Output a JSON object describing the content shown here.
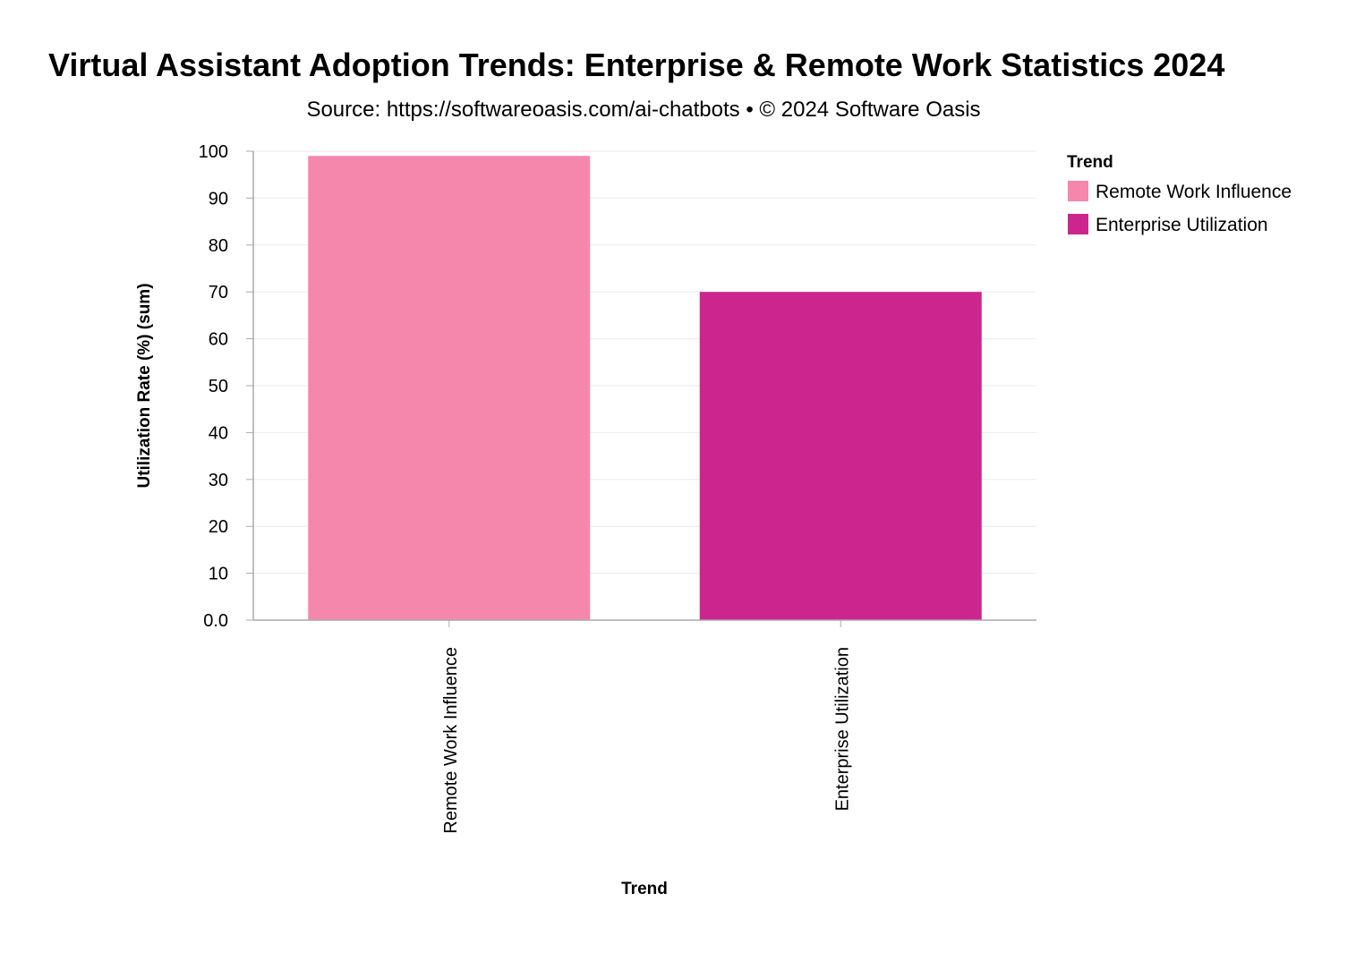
{
  "chart_data": {
    "type": "bar",
    "title": "Virtual Assistant Adoption Trends: Enterprise & Remote Work Statistics 2024",
    "subtitle": "Source: https://softwareoasis.com/ai-chatbots • © 2024 Software Oasis",
    "xlabel": "Trend",
    "ylabel": "Utilization Rate (%) (sum)",
    "categories": [
      "Remote Work Influence",
      "Enterprise Utilization"
    ],
    "values": [
      99,
      70
    ],
    "colors": [
      "#f687ac",
      "#cc258e"
    ],
    "ylim": [
      0,
      100
    ],
    "yticks": [
      "0.0",
      "10",
      "20",
      "30",
      "40",
      "50",
      "60",
      "70",
      "80",
      "90",
      "100"
    ],
    "grid": true,
    "legend": {
      "title": "Trend",
      "position": "right",
      "entries": [
        "Remote Work Influence",
        "Enterprise Utilization"
      ]
    }
  }
}
